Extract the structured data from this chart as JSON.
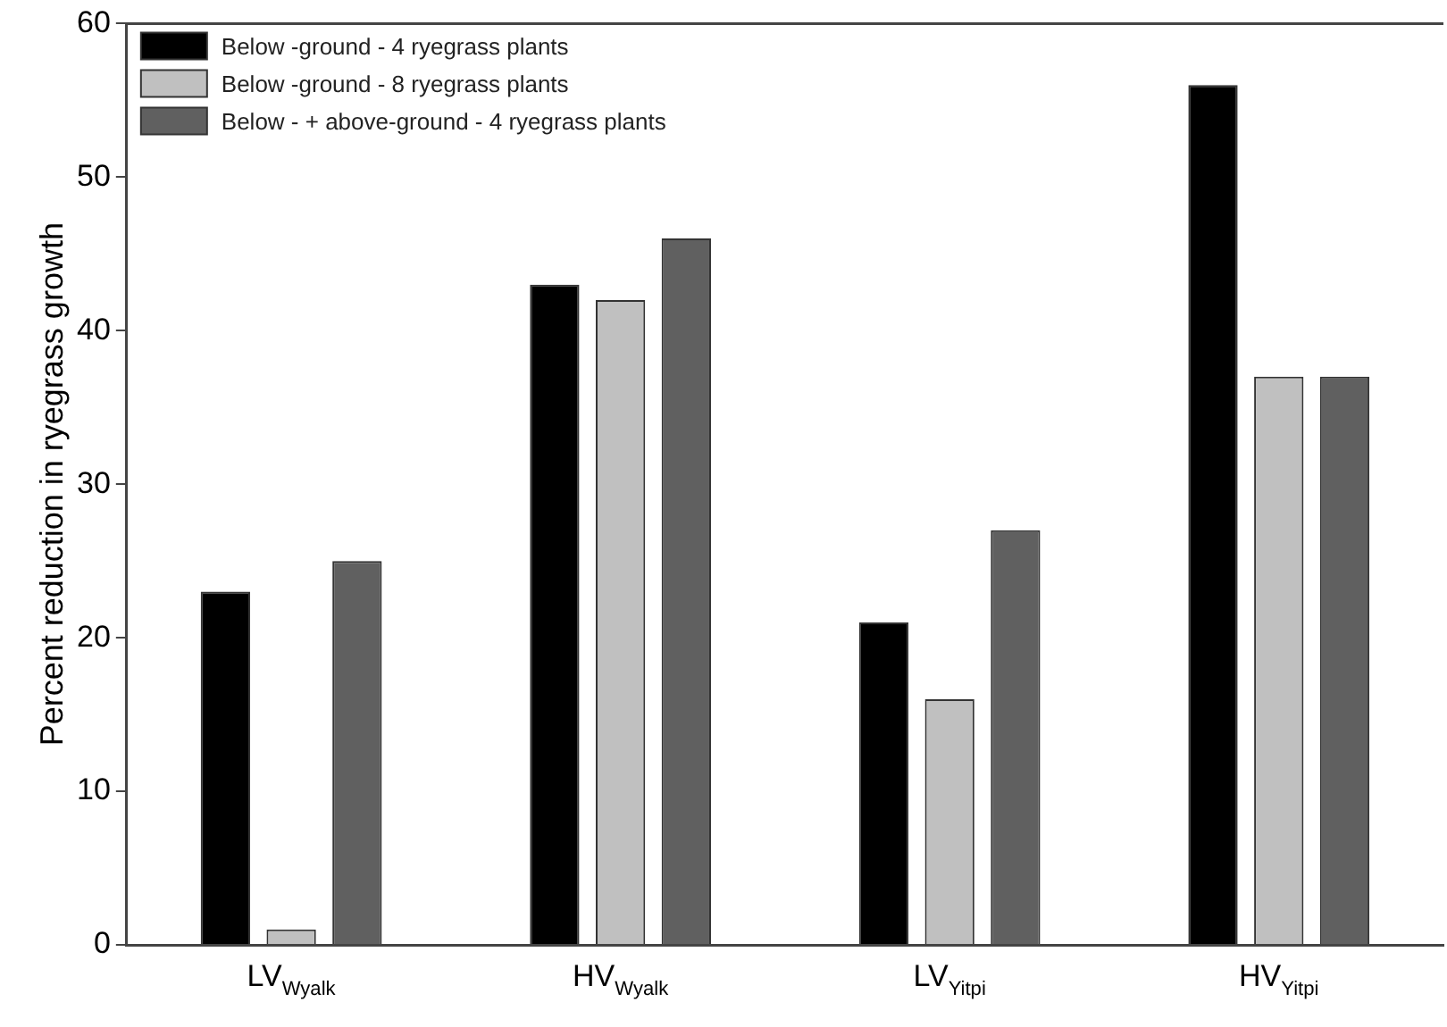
{
  "chart_data": {
    "type": "bar",
    "ylabel": "Percent reduction in ryegrass growth",
    "categories": [
      "LV$_{Wyalk}$",
      "HV$_{Wyalk}$",
      "LV$_{Yitpi}$",
      "HV$_{Yitpi}$"
    ],
    "series": [
      {
        "name": "Below -ground - 4 ryegrass plants",
        "color": "#000000",
        "values": [
          23,
          43,
          21,
          56
        ]
      },
      {
        "name": "Below -ground - 8 ryegrass plants",
        "color": "#c0c0c0",
        "values": [
          1,
          42,
          16,
          37
        ]
      },
      {
        "name": "Below - + above-ground - 4 ryegrass plants",
        "color": "#606060",
        "values": [
          25,
          46,
          27,
          37
        ]
      }
    ],
    "ylim": [
      0,
      60
    ],
    "yticks": [
      0,
      10,
      20,
      30,
      40,
      50,
      60
    ],
    "grid": false,
    "legend": "top left"
  }
}
